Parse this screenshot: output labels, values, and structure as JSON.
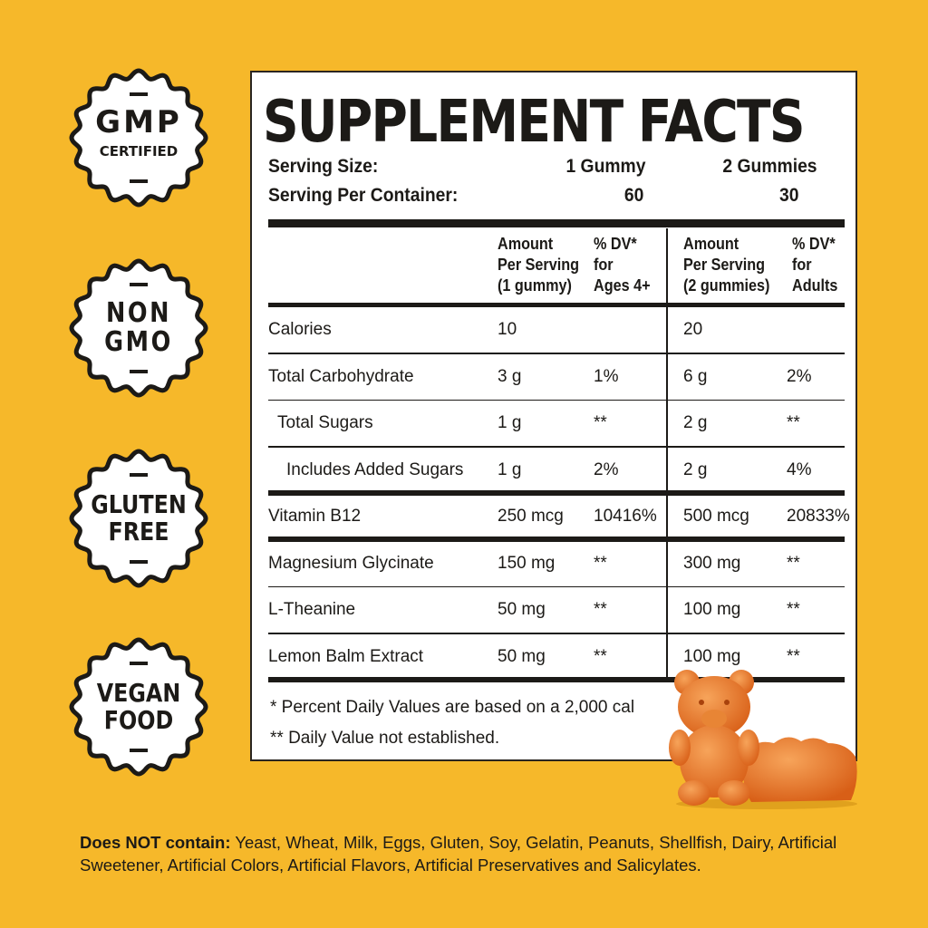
{
  "colors": {
    "background": "#F6B82A",
    "badge_fill": "#ffffff",
    "ink": "#1c1a17",
    "gummy": "#E8772A"
  },
  "badges": [
    {
      "line1": "GMP",
      "line2": "CERTIFIED"
    },
    {
      "line1": "NON",
      "line2": "GMO"
    },
    {
      "line1": "GLUTEN",
      "line2": "FREE"
    },
    {
      "line1": "VEGAN",
      "line2": "FOOD"
    }
  ],
  "label": {
    "title": "SUPPLEMENT FACTS",
    "serving_size_label": "Serving Size:",
    "serving_size_1": "1 Gummy",
    "serving_size_2": "2 Gummies",
    "servings_label": "Serving Per Container:",
    "servings_1": "60",
    "servings_2": "30",
    "columns": [
      "Amount\nPer Serving\n(1 gummy)",
      "% DV*\nfor\nAges 4+",
      "Amount\nPer Serving\n(2 gummies)",
      "% DV*\nfor\nAdults"
    ],
    "rows": [
      {
        "name": "Calories",
        "amt1": "10",
        "dv1": "",
        "amt2": "20",
        "dv2": ""
      },
      {
        "name": "Total Carbohydrate",
        "amt1": "3 g",
        "dv1": "1%",
        "amt2": "6 g",
        "dv2": "2%"
      },
      {
        "name": "Total Sugars",
        "amt1": "1 g",
        "dv1": "**",
        "amt2": "2 g",
        "dv2": "**"
      },
      {
        "name": "Includes Added Sugars",
        "amt1": "1 g",
        "dv1": "2%",
        "amt2": "2 g",
        "dv2": "4%"
      },
      {
        "name": "Vitamin B12",
        "amt1": "250 mcg",
        "dv1": "10416%",
        "amt2": "500 mcg",
        "dv2": "20833%"
      },
      {
        "name": "Magnesium Glycinate",
        "amt1": "150 mg",
        "dv1": "**",
        "amt2": "300 mg",
        "dv2": "**"
      },
      {
        "name": "L-Theanine",
        "amt1": "50 mg",
        "dv1": "**",
        "amt2": "100 mg",
        "dv2": "**"
      },
      {
        "name": "Lemon Balm Extract",
        "amt1": "50 mg",
        "dv1": "**",
        "amt2": "100 mg",
        "dv2": "**"
      }
    ],
    "footnote1": "* Percent Daily Values are based on a 2,000 cal",
    "footnote2": "** Daily Value not established."
  },
  "bottom": {
    "bold": "Does NOT contain:",
    "text": " Yeast, Wheat, Milk, Eggs, Gluten, Soy, Gelatin, Peanuts, Shellfish, Dairy, Artificial Sweetener, Artificial Colors, Artificial Flavors, Artificial Preservatives and Salicylates."
  }
}
